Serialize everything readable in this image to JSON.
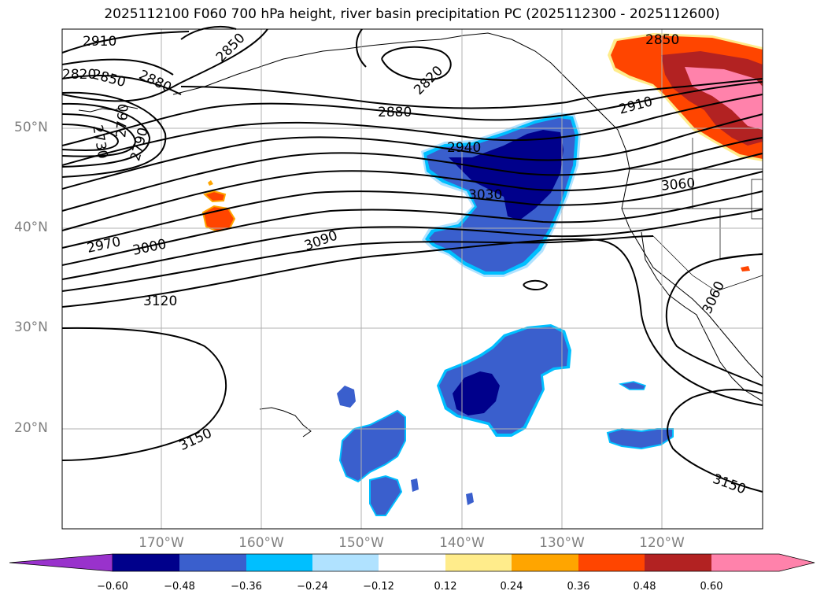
{
  "title": "2025112100 F060 700 hPa height, river basin precipitation PC (2025112300 - 2025112600)",
  "lat_labels": [
    "50°N",
    "40°N",
    "30°N",
    "20°N"
  ],
  "lon_labels": [
    "170°W",
    "160°W",
    "150°W",
    "140°W",
    "130°W",
    "120°W"
  ],
  "contour_labels": {
    "c2910a": "2910",
    "c2850a": "2850",
    "c2820": "2820",
    "c2850b": "2850",
    "c2820b": "2820",
    "c2850c": "2850",
    "c2880a": "2880",
    "c2730": "2730",
    "c2760": "2760",
    "c2790": "2790",
    "c2880b": "2880",
    "c2910b": "2910",
    "c2940": "2940",
    "c3030": "3030",
    "c3060a": "3060",
    "c2970": "2970",
    "c3000": "3000",
    "c3090": "3090",
    "c3120": "3120",
    "c3060b": "3060",
    "c3150a": "3150",
    "c3150b": "3150"
  },
  "colorbar": {
    "ticks": [
      "−0.60",
      "−0.48",
      "−0.36",
      "−0.24",
      "−0.12",
      "0.12",
      "0.24",
      "0.36",
      "0.48",
      "0.60"
    ],
    "colors": [
      "#9932CC",
      "#00008B",
      "#3A5FCD",
      "#00BFFF",
      "#B0E2FF",
      "#FFFFFF",
      "#FFEC8B",
      "#FFA500",
      "#FF4500",
      "#B22222",
      "#FF82AB"
    ]
  },
  "colors": {
    "contour": "#000000",
    "grid": "#b0b0b0",
    "axis_label": "#808080"
  }
}
